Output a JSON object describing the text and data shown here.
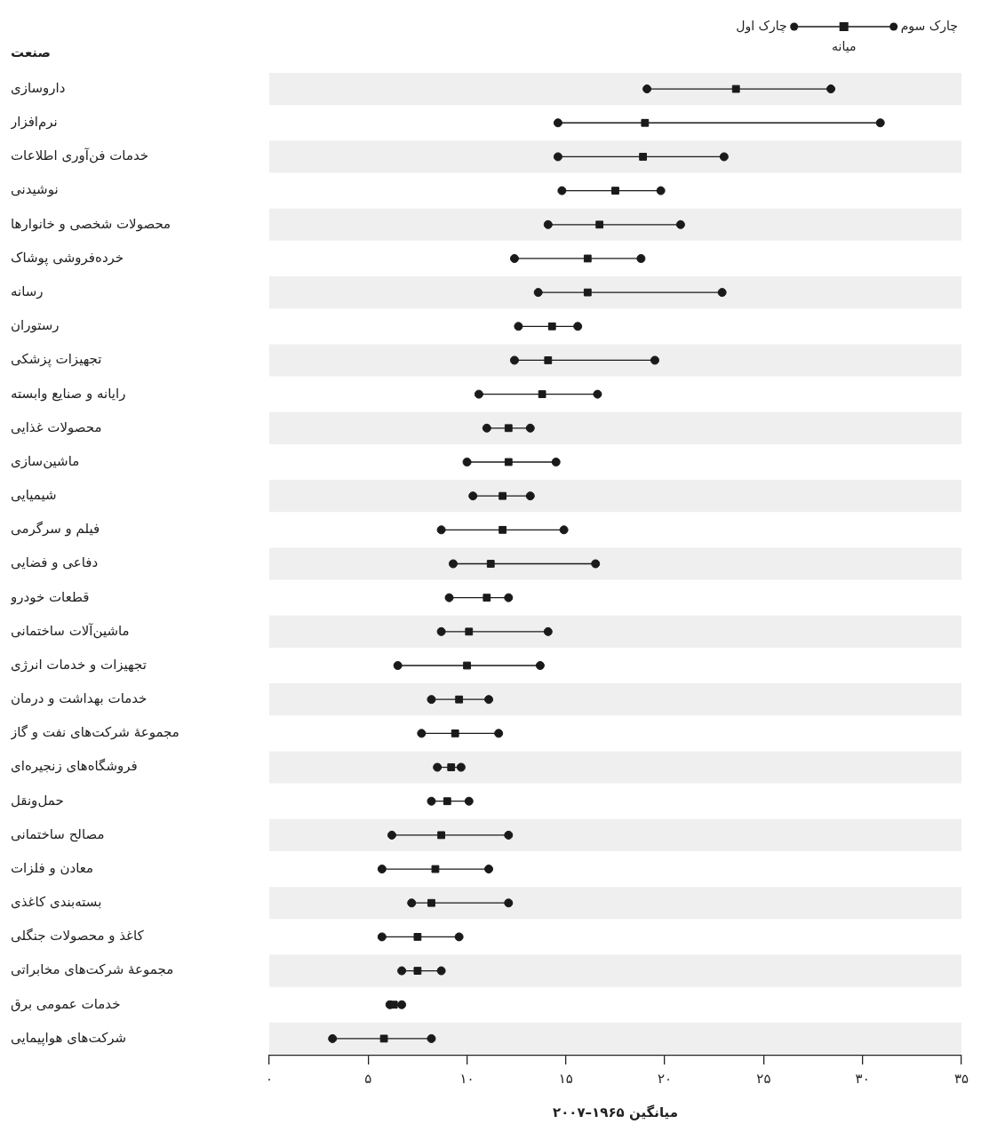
{
  "chart_data": {
    "type": "scatter",
    "orientation": "horizontal",
    "ylabel": "صنعت",
    "xlabel": "میانگین ۱۹۶۵–۲۰۰۷",
    "categories": [
      "داروسازی",
      "نرم‌افزار",
      "خدمات فن‌آوری اطلاعات",
      "نوشیدنی",
      "محصولات شخصی و خانوارها",
      "خرده‌فروشی پوشاک",
      "رسانه",
      "رستوران",
      "تجهیزات پزشکی",
      "رایانه و صنایع وابسته",
      "محصولات غذایی",
      "ماشین‌سازی",
      "شیمیایی",
      "فیلم و سرگرمی",
      "دفاعی و فضایی",
      "قطعات خودرو",
      "ماشین‌آلات ساختمانی",
      "تجهیزات و خدمات انرژی",
      "خدمات بهداشت و درمان",
      "مجموعهٔ شرکت‌های نفت و گاز",
      "فروشگاه‌های زنجیره‌ای",
      "حمل‌ونقل",
      "مصالح ساختمانی",
      "معادن و فلزات",
      "بسته‌بندی کاغذی",
      "کاغذ و محصولات جنگلی",
      "مجموعهٔ شرکت‌های مخابراتی",
      "خدمات عمومی برق",
      "شرکت‌های هواپیمایی"
    ],
    "series": [
      {
        "name": "چارک اول",
        "color": "#1a1a1a",
        "marker": "circle",
        "values": [
          19.1,
          14.6,
          14.6,
          14.8,
          14.1,
          12.4,
          13.6,
          12.6,
          12.4,
          10.6,
          11.0,
          10.0,
          10.3,
          8.7,
          9.3,
          9.1,
          8.7,
          6.5,
          8.2,
          7.7,
          8.5,
          8.2,
          6.2,
          5.7,
          7.2,
          5.7,
          6.7,
          6.1,
          3.2
        ]
      },
      {
        "name": "میانه",
        "color": "#1a1a1a",
        "marker": "square",
        "values": [
          23.6,
          19.0,
          18.9,
          17.5,
          16.7,
          16.1,
          16.1,
          14.3,
          14.1,
          13.8,
          12.1,
          12.1,
          11.8,
          11.8,
          11.2,
          11.0,
          10.1,
          10.0,
          9.6,
          9.4,
          9.2,
          9.0,
          8.7,
          8.4,
          8.2,
          7.5,
          7.5,
          6.3,
          5.8
        ]
      },
      {
        "name": "چارک سوم",
        "color": "#1a1a1a",
        "marker": "circle",
        "values": [
          28.4,
          30.9,
          23.0,
          19.8,
          20.8,
          18.8,
          22.9,
          15.6,
          19.5,
          16.6,
          13.2,
          14.5,
          13.2,
          14.9,
          16.5,
          12.1,
          14.1,
          13.7,
          11.1,
          11.6,
          9.7,
          10.1,
          12.1,
          11.1,
          12.1,
          9.6,
          8.7,
          6.7,
          8.2
        ]
      }
    ],
    "xlim": [
      0,
      35
    ],
    "xticks": [
      {
        "value": 0,
        "label": "۰"
      },
      {
        "value": 5,
        "label": "۵"
      },
      {
        "value": 10,
        "label": "۱۰"
      },
      {
        "value": 15,
        "label": "۱۵"
      },
      {
        "value": 20,
        "label": "۲۰"
      },
      {
        "value": 25,
        "label": "۲۵"
      },
      {
        "value": 30,
        "label": "۳۰"
      },
      {
        "value": 35,
        "label": "۳۵"
      }
    ],
    "grid": false,
    "legend": "top right"
  }
}
